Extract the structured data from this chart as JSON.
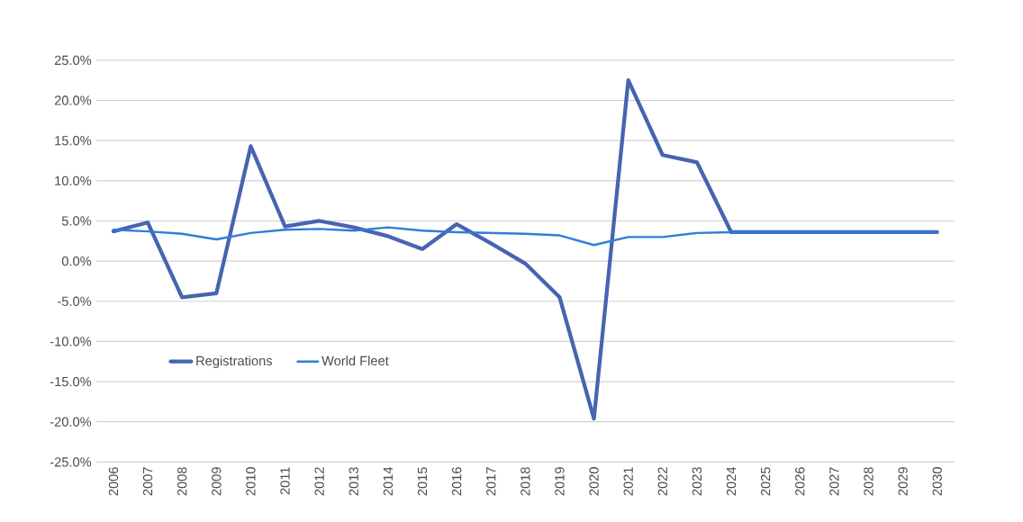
{
  "chart_data": {
    "type": "line",
    "categories": [
      "2006",
      "2007",
      "2008",
      "2009",
      "2010",
      "2011",
      "2012",
      "2013",
      "2014",
      "2015",
      "2016",
      "2017",
      "2018",
      "2019",
      "2020",
      "2021",
      "2022",
      "2023",
      "2024",
      "2025",
      "2026",
      "2027",
      "2028",
      "2029",
      "2030"
    ],
    "series": [
      {
        "name": "Registrations",
        "color": "#4664b0",
        "values": [
          3.7,
          4.8,
          -4.5,
          -4.0,
          14.3,
          4.3,
          5.0,
          4.2,
          3.1,
          1.5,
          4.6,
          2.2,
          -0.3,
          -4.5,
          -19.6,
          22.5,
          13.2,
          12.3,
          3.6,
          3.6,
          3.6,
          3.6,
          3.6,
          3.6,
          3.6
        ]
      },
      {
        "name": "World Fleet",
        "color": "#2e7fd6",
        "values": [
          3.9,
          3.7,
          3.4,
          2.7,
          3.5,
          3.9,
          4.0,
          3.8,
          4.2,
          3.8,
          3.6,
          3.5,
          3.4,
          3.2,
          2.0,
          3.0,
          3.0,
          3.5,
          3.6,
          3.6,
          3.6,
          3.6,
          3.6,
          3.6,
          3.6
        ]
      }
    ],
    "ylim": [
      -25,
      25
    ],
    "yticks": [
      {
        "value": -25,
        "label": "-25.0%"
      },
      {
        "value": -20,
        "label": "-20.0%"
      },
      {
        "value": -15,
        "label": "-15.0%"
      },
      {
        "value": -10,
        "label": "-10.0%"
      },
      {
        "value": -5,
        "label": "-5.0%"
      },
      {
        "value": 0,
        "label": "0.0%"
      },
      {
        "value": 5,
        "label": "5.0%"
      },
      {
        "value": 10,
        "label": "10.0%"
      },
      {
        "value": 15,
        "label": "15.0%"
      },
      {
        "value": 20,
        "label": "20.0%"
      },
      {
        "value": 25,
        "label": "25.0%"
      }
    ],
    "grid": "y",
    "legend": "bottom left",
    "marker": "none",
    "line_style": "solid"
  }
}
